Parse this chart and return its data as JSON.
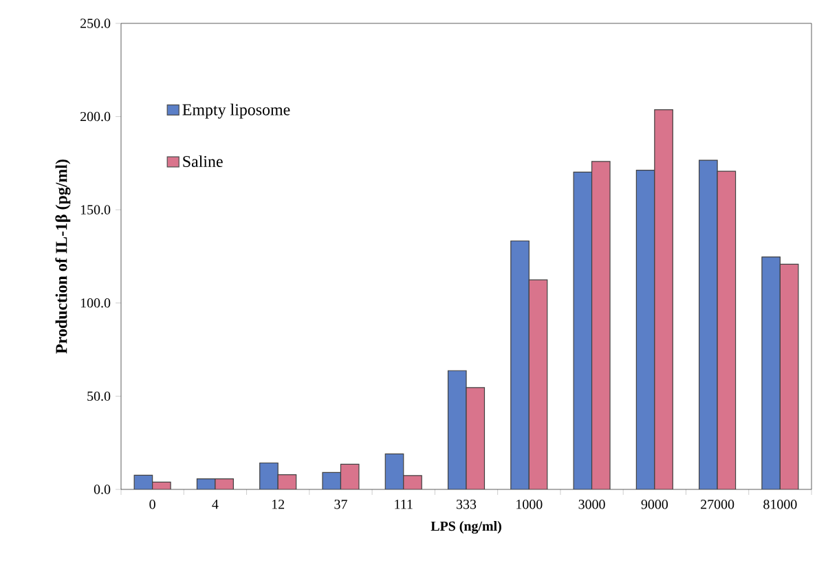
{
  "chart_data": {
    "type": "bar",
    "xlabel": "LPS (ng/ml)",
    "ylabel": "Production of IL-1β (pg/ml)",
    "categories": [
      "0",
      "4",
      "12",
      "37",
      "111",
      "333",
      "1000",
      "3000",
      "9000",
      "27000",
      "81000"
    ],
    "series": [
      {
        "name": "Empty liposome",
        "color": "#5b7fc7",
        "values": [
          7.6,
          5.7,
          14.2,
          9.1,
          19.0,
          63.7,
          133.3,
          170.2,
          171.2,
          176.6,
          124.7
        ]
      },
      {
        "name": "Saline",
        "color": "#d9748c",
        "values": [
          3.9,
          5.7,
          7.9,
          13.5,
          7.4,
          54.6,
          112.4,
          175.9,
          203.7,
          170.7,
          120.8
        ]
      }
    ],
    "ylim": [
      0,
      250
    ],
    "yticks": [
      {
        "value": 0,
        "label": "0.0"
      },
      {
        "value": 50,
        "label": "50.0"
      },
      {
        "value": 100,
        "label": "100.0"
      },
      {
        "value": 150,
        "label": "150.0"
      },
      {
        "value": 200,
        "label": "200.0"
      },
      {
        "value": 250,
        "label": "250.0"
      }
    ],
    "grid": false,
    "legend": "top left"
  }
}
